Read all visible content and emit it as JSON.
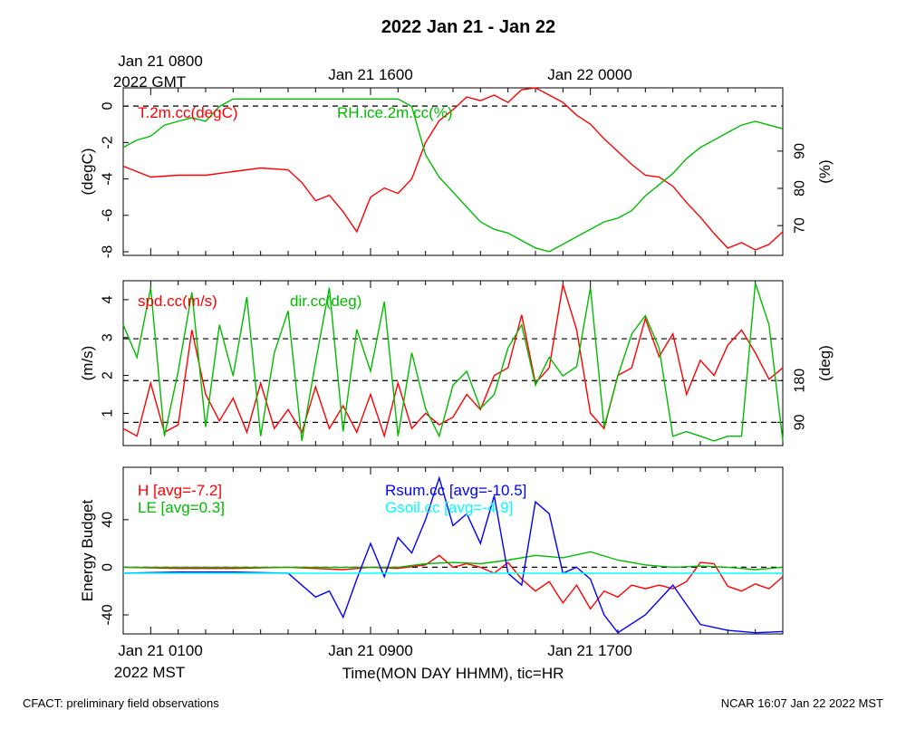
{
  "figure": {
    "title": "2022 Jan 21 - Jan 22",
    "gmt_labels": [
      "Jan 21 0800",
      "Jan 21 1600",
      "Jan 22 0000"
    ],
    "gmt_year_label": "2022 GMT",
    "mst_labels": [
      "Jan 21 0100",
      "Jan 21 0900",
      "Jan 21 1700"
    ],
    "mst_year_label": "2022 MST",
    "xlabel": "Time(MON DAY HHMM), tic=HR",
    "footer_left": "CFACT: preliminary field observations",
    "footer_right": "NCAR 16:07 Jan 22 2022 MST"
  },
  "chart_data": [
    {
      "type": "line",
      "panel": "temperature-humidity",
      "x_unit": "hours since Jan 21 0000 MST",
      "xlim": [
        0,
        24
      ],
      "ylabel_left": "(degC)",
      "ylabel_right": "(%)",
      "ylim_left": [
        -8.2,
        1.0
      ],
      "ylim_right": [
        62,
        107
      ],
      "left_ticks": [
        "-8",
        "-6",
        "-4",
        "-2",
        "0"
      ],
      "left_tick_values": [
        -8,
        -6,
        -4,
        -2,
        0
      ],
      "right_ticks": [
        "70",
        "80",
        "90"
      ],
      "right_tick_values": [
        70,
        80,
        90
      ],
      "ref_lines_left": [
        0
      ],
      "series": [
        {
          "name": "T.2m.cc(degC)",
          "axis": "left",
          "color": "#ff0000",
          "x": [
            0,
            1,
            2,
            3,
            4,
            5,
            6,
            6.5,
            7,
            7.5,
            8,
            8.5,
            9,
            9.5,
            10,
            10.5,
            11,
            11.5,
            12,
            12.5,
            13,
            13.5,
            14,
            14.5,
            15,
            15.5,
            16,
            16.5,
            17,
            17.5,
            18,
            18.5,
            19,
            19.5,
            20,
            20.5,
            21,
            21.5,
            22,
            22.5,
            23,
            23.5,
            24
          ],
          "values": [
            -3.3,
            -3.9,
            -3.8,
            -3.8,
            -3.6,
            -3.4,
            -3.5,
            -4.2,
            -5.2,
            -4.9,
            -5.8,
            -6.9,
            -5.0,
            -4.5,
            -4.8,
            -4.0,
            -2.0,
            -0.8,
            -0.2,
            0.5,
            0.3,
            0.6,
            0.2,
            0.9,
            1.1,
            0.6,
            0.2,
            -0.5,
            -1.0,
            -1.8,
            -2.5,
            -3.2,
            -3.8,
            -3.9,
            -4.4,
            -5.3,
            -6.1,
            -7.0,
            -7.8,
            -7.5,
            -7.9,
            -7.6,
            -6.9
          ]
        },
        {
          "name": "RH.ice.2m.cc(%)",
          "axis": "right",
          "color": "#00bb00",
          "x": [
            0,
            0.5,
            1,
            1.5,
            2,
            2.5,
            3,
            3.5,
            4,
            5,
            6,
            7,
            8,
            9,
            9.5,
            10,
            10.5,
            11,
            11.5,
            12,
            12.5,
            13,
            13.5,
            14,
            14.5,
            15,
            15.5,
            16,
            16.5,
            17,
            17.5,
            18,
            18.5,
            19,
            19.5,
            20,
            20.5,
            21,
            21.5,
            22,
            22.5,
            23,
            23.5,
            24
          ],
          "values": [
            91,
            93,
            94,
            97,
            98,
            99,
            98,
            102,
            104,
            104,
            104,
            104,
            104,
            104,
            104,
            104,
            102,
            89,
            83,
            79,
            75,
            71,
            69,
            68,
            66,
            64,
            63,
            65,
            67,
            69,
            71,
            72,
            74,
            78,
            81,
            84,
            88,
            91,
            93,
            95,
            97,
            98,
            97,
            96
          ]
        }
      ],
      "legend": [
        "T.2m.cc(degC)",
        "RH.ice.2m.cc(%)"
      ]
    },
    {
      "type": "line",
      "panel": "wind",
      "x_unit": "hours since Jan 21 0000 MST",
      "xlim": [
        0,
        24
      ],
      "ylabel_left": "(m/s)",
      "ylabel_right": "(deg)",
      "ylim_left": [
        0.15,
        4.5
      ],
      "ylim_right": [
        40,
        395
      ],
      "left_ticks": [
        "1",
        "2",
        "3",
        "4"
      ],
      "left_tick_values": [
        1,
        2,
        3,
        4
      ],
      "right_ticks": [
        "90",
        "180"
      ],
      "right_tick_values": [
        90,
        180
      ],
      "ref_lines_right": [
        90,
        180,
        270
      ],
      "series": [
        {
          "name": "spd.cc(m/s)",
          "axis": "left",
          "color": "#ff0000",
          "x": [
            0,
            0.5,
            1,
            1.5,
            2,
            2.5,
            3,
            3.5,
            4,
            4.5,
            5,
            5.5,
            6,
            6.5,
            7,
            7.5,
            8,
            8.5,
            9,
            9.5,
            10,
            10.5,
            11,
            11.5,
            12,
            12.5,
            13,
            13.5,
            14,
            14.5,
            15,
            15.5,
            16,
            16.5,
            17,
            17.5,
            18,
            18.5,
            19,
            19.5,
            20,
            20.5,
            21,
            21.5,
            22,
            22.5,
            23,
            23.5,
            24
          ],
          "values": [
            0.6,
            0.4,
            1.8,
            0.5,
            0.7,
            3.2,
            1.5,
            0.8,
            1.4,
            0.5,
            1.8,
            0.6,
            1.1,
            0.5,
            1.7,
            0.6,
            1.2,
            0.5,
            1.5,
            0.4,
            1.8,
            0.6,
            1.0,
            0.7,
            0.9,
            1.5,
            1.1,
            2.0,
            2.2,
            3.6,
            1.8,
            2.2,
            4.4,
            3.2,
            1.0,
            0.6,
            2.0,
            2.2,
            3.5,
            2.5,
            3.1,
            1.5,
            2.4,
            2.0,
            2.8,
            3.2,
            2.6,
            1.9,
            2.2
          ]
        },
        {
          "name": "dir.cc(deg)",
          "axis": "right",
          "color": "#00bb00",
          "x": [
            0,
            0.5,
            1,
            1.5,
            2,
            2.5,
            3,
            3.5,
            4,
            4.5,
            5,
            5.5,
            6,
            6.5,
            7,
            7.5,
            8,
            8.5,
            9,
            9.5,
            10,
            10.5,
            11,
            11.5,
            12,
            12.5,
            13,
            13.5,
            14,
            14.5,
            15,
            15.5,
            16,
            16.5,
            17,
            17.5,
            18,
            18.5,
            19,
            19.5,
            20,
            20.5,
            21,
            21.5,
            22,
            22.5,
            23,
            23.5,
            24
          ],
          "values": [
            300,
            230,
            380,
            60,
            200,
            370,
            80,
            300,
            190,
            360,
            60,
            240,
            330,
            50,
            220,
            380,
            70,
            290,
            200,
            350,
            60,
            240,
            120,
            60,
            170,
            200,
            120,
            150,
            250,
            300,
            170,
            230,
            190,
            210,
            380,
            80,
            190,
            280,
            320,
            250,
            60,
            70,
            60,
            50,
            60,
            60,
            390,
            300,
            50
          ]
        }
      ],
      "legend": [
        "spd.cc(m/s)",
        "dir.cc(deg)"
      ]
    },
    {
      "type": "line",
      "panel": "energy-budget",
      "x_unit": "hours since Jan 21 0000 MST",
      "xlim": [
        0,
        24
      ],
      "ylabel_left": "Energy Budget",
      "ylim": [
        -56,
        84
      ],
      "left_ticks": [
        "-40",
        "0",
        "40"
      ],
      "left_tick_values": [
        -40,
        0,
        40
      ],
      "ref_lines_left": [
        0
      ],
      "series": [
        {
          "name": "H",
          "avg": "-7.2",
          "color": "#ff0000",
          "x": [
            0,
            2,
            4,
            6,
            8,
            9,
            10,
            11,
            11.5,
            12,
            12.5,
            13,
            13.5,
            14,
            14.5,
            15,
            15.5,
            16,
            16.5,
            17,
            17.5,
            18,
            18.5,
            19,
            19.5,
            20,
            20.5,
            21,
            21.5,
            22,
            22.5,
            23,
            23.5,
            24
          ],
          "values": [
            0,
            -1,
            -1,
            0,
            -2,
            0,
            -1,
            2,
            10,
            0,
            3,
            0,
            -5,
            4,
            -10,
            -20,
            -12,
            -30,
            -15,
            -35,
            -20,
            -25,
            -15,
            -18,
            -15,
            -18,
            -12,
            4,
            3,
            -16,
            -20,
            -14,
            -18,
            -8
          ]
        },
        {
          "name": "LE",
          "avg": "0.3",
          "color": "#00bb00",
          "x": [
            0,
            4,
            8,
            10,
            11,
            12,
            13,
            14,
            15,
            16,
            17,
            18,
            19,
            20,
            21,
            22,
            23,
            24
          ],
          "values": [
            0,
            0,
            0,
            0,
            3,
            4,
            3,
            6,
            10,
            8,
            13,
            6,
            2,
            0,
            1,
            0,
            -2,
            0
          ]
        },
        {
          "name": "Rsum.cc",
          "avg": "-10.5",
          "color": "#0000ff",
          "x": [
            0,
            2,
            4,
            6,
            7,
            7.5,
            8,
            8.5,
            9,
            9.5,
            10,
            10.5,
            11,
            11.5,
            12,
            12.5,
            13,
            13.5,
            14,
            14.5,
            15,
            15.5,
            16,
            16.5,
            17,
            17.5,
            18,
            19,
            20,
            21,
            22,
            23,
            24
          ],
          "values": [
            -5,
            -4,
            -4,
            -5,
            -25,
            -20,
            -42,
            -10,
            20,
            -8,
            25,
            12,
            40,
            75,
            35,
            45,
            20,
            60,
            -5,
            -15,
            55,
            45,
            -5,
            0,
            -10,
            -40,
            -55,
            -40,
            -15,
            -48,
            -53,
            -55,
            -54
          ]
        },
        {
          "name": "Gsoil.cc",
          "avg": "-4.9",
          "color": "#00ffff",
          "x": [
            0,
            24
          ],
          "values": [
            -5,
            -5
          ]
        }
      ],
      "legend": [
        "H [avg=-7.2]",
        "LE [avg=0.3]",
        "Rsum.cc [avg=-10.5]",
        "Gsoil.cc [avg=-4.9]"
      ]
    }
  ]
}
